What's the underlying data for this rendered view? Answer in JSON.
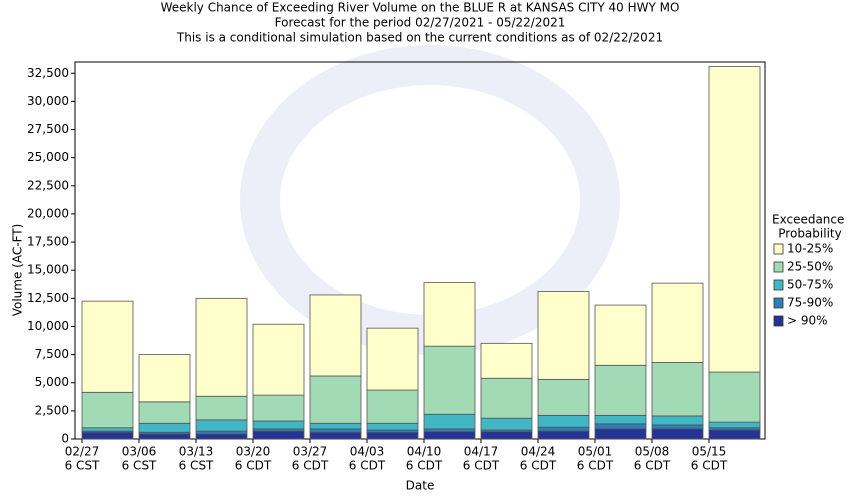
{
  "chart_data": {
    "type": "stacked_bar",
    "title": [
      "Weekly Chance of Exceeding River Volume on the BLUE R at KANSAS CITY 40 HWY MO",
      "Forecast for the period 02/27/2021 - 05/22/2021",
      "This is a conditional simulation based on the current conditions as of 02/22/2021"
    ],
    "x_label": "Date",
    "y_label": "Volume (AC-FT)",
    "legend_title": [
      "Exceedance",
      "Probability"
    ],
    "categories": [
      [
        "02/27",
        "6 CST"
      ],
      [
        "03/06",
        "6 CST"
      ],
      [
        "03/13",
        "6 CST"
      ],
      [
        "03/20",
        "6 CDT"
      ],
      [
        "03/27",
        "6 CDT"
      ],
      [
        "04/03",
        "6 CDT"
      ],
      [
        "04/10",
        "6 CDT"
      ],
      [
        "04/17",
        "6 CDT"
      ],
      [
        "04/24",
        "6 CDT"
      ],
      [
        "05/01",
        "6 CDT"
      ],
      [
        "05/08",
        "6 CDT"
      ],
      [
        "05/15",
        "6 CDT"
      ]
    ],
    "series": [
      {
        "name": "> 90%",
        "color": "#253494",
        "values": [
          600,
          450,
          450,
          700,
          600,
          600,
          650,
          650,
          700,
          900,
          900,
          800
        ]
      },
      {
        "name": "75-90%",
        "color": "#2c7fb8",
        "values": [
          100,
          150,
          250,
          200,
          300,
          200,
          250,
          150,
          350,
          450,
          350,
          200
        ]
      },
      {
        "name": "50-75%",
        "color": "#41b6c4",
        "values": [
          300,
          800,
          1000,
          700,
          500,
          600,
          1300,
          1050,
          1050,
          750,
          800,
          500
        ]
      },
      {
        "name": "25-50%",
        "color": "#a1dab4",
        "values": [
          3150,
          1900,
          2100,
          2300,
          4200,
          2950,
          6050,
          3550,
          3200,
          4450,
          4750,
          4450
        ]
      },
      {
        "name": "10-25%",
        "color": "#ffffcc",
        "values": [
          8100,
          4200,
          8700,
          6300,
          7200,
          5500,
          5650,
          3100,
          7800,
          5350,
          7050,
          27150
        ]
      }
    ],
    "ylim": [
      0,
      33500
    ],
    "yticks": [
      0,
      {
        "value": 2500,
        "label": "2,500"
      },
      {
        "value": 5000,
        "label": "5,000"
      },
      {
        "value": 7500,
        "label": "7,500"
      },
      {
        "value": 10000,
        "label": "10,000"
      },
      {
        "value": 12500,
        "label": "12,500"
      },
      {
        "value": 15000,
        "label": "15,000"
      },
      {
        "value": 17500,
        "label": "17,500"
      },
      {
        "value": 20000,
        "label": "20,000"
      },
      {
        "value": 22500,
        "label": "22,500"
      },
      {
        "value": 25000,
        "label": "25,000"
      },
      {
        "value": 27500,
        "label": "27,500"
      },
      {
        "value": 30000,
        "label": "30,000"
      },
      {
        "value": 32500,
        "label": "32,500"
      }
    ],
    "grid": false
  }
}
